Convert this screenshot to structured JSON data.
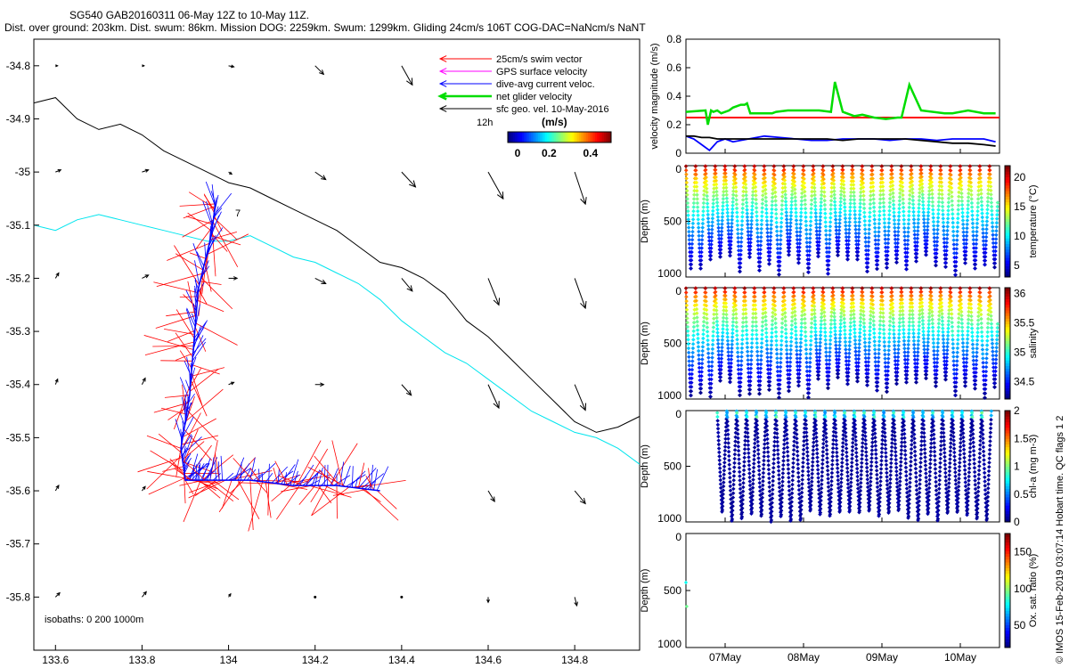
{
  "header": {
    "line1": "SG540 GAB20160311 06-May 12Z to 10-May 11Z.",
    "line2": "Dist. over ground: 203km. Dist. swum: 86km. Mission DOG: 2259km. Swum: 1299km. Gliding 24cm/s 106T COG-DAC=NaNcm/s NaNT"
  },
  "credit": "© IMOS 15-Feb-2019 03:07:14 Hobart time. QC flags 1  2",
  "colors": {
    "swim_vector": "#ff0000",
    "gps_velocity": "#ff00ff",
    "dive_avg_current": "#0000ff",
    "net_glider_velocity": "#00dd00",
    "sfc_geo_vel": "#000000",
    "isobath_200": "#00e5ee",
    "isobath_1000": "#000000",
    "threshold": "#ff0000"
  },
  "chart_data": [
    {
      "type": "map",
      "title": "",
      "xlim": [
        133.55,
        134.95
      ],
      "ylim": [
        -35.9,
        -34.75
      ],
      "x_ticks": [
        "133.6",
        "133.8",
        "134",
        "134.2",
        "134.4",
        "134.6",
        "134.8"
      ],
      "y_ticks": [
        "-34.8",
        "-34.9",
        "-35",
        "-35.1",
        "-35.2",
        "-35.3",
        "-35.4",
        "-35.5",
        "-35.6",
        "-35.7",
        "-35.8"
      ],
      "legend": [
        {
          "label": "25cm/s swim vector",
          "color": "#ff0000"
        },
        {
          "label": "GPS surface velocity",
          "color": "#ff00ff"
        },
        {
          "label": "dive-avg current veloc.",
          "color": "#0000ff"
        },
        {
          "label": "net glider velocity",
          "color": "#00dd00"
        },
        {
          "label": "sfc geo. vel. 10-May-2016",
          "color": "#000000"
        }
      ],
      "colorbar": {
        "label": "(m/s)",
        "ticks": [
          "0",
          "0.2",
          "0.4"
        ],
        "range": [
          0,
          0.5
        ]
      },
      "scale_label": "12h",
      "annotation": "7",
      "isobaths_label": "isobaths: 0   200  1000m",
      "isobath_1000m": {
        "lon": [
          133.55,
          133.6,
          133.65,
          133.7,
          133.75,
          133.8,
          133.85,
          133.9,
          133.95,
          134.0,
          134.05,
          134.1,
          134.15,
          134.2,
          134.25,
          134.3,
          134.35,
          134.4,
          134.45,
          134.5,
          134.55,
          134.6,
          134.65,
          134.7,
          134.75,
          134.8,
          134.85,
          134.9,
          134.95
        ],
        "lat": [
          -34.87,
          -34.86,
          -34.9,
          -34.92,
          -34.91,
          -34.93,
          -34.96,
          -34.98,
          -35.0,
          -35.02,
          -35.03,
          -35.05,
          -35.07,
          -35.09,
          -35.11,
          -35.14,
          -35.17,
          -35.18,
          -35.2,
          -35.23,
          -35.28,
          -35.31,
          -35.35,
          -35.39,
          -35.43,
          -35.47,
          -35.49,
          -35.48,
          -35.46
        ]
      },
      "isobath_200m": {
        "lon": [
          133.55,
          133.6,
          133.65,
          133.7,
          133.75,
          133.8,
          133.85,
          133.9,
          133.95,
          134.0,
          134.05,
          134.1,
          134.15,
          134.2,
          134.25,
          134.3,
          134.35,
          134.4,
          134.45,
          134.5,
          134.55,
          134.6,
          134.65,
          134.7,
          134.75,
          134.8,
          134.85,
          134.9,
          134.95
        ],
        "lat": [
          -35.1,
          -35.11,
          -35.09,
          -35.08,
          -35.09,
          -35.1,
          -35.11,
          -35.12,
          -35.13,
          -35.13,
          -35.12,
          -35.14,
          -35.16,
          -35.17,
          -35.19,
          -35.21,
          -35.24,
          -35.28,
          -35.31,
          -35.34,
          -35.36,
          -35.39,
          -35.42,
          -35.45,
          -35.47,
          -35.49,
          -35.5,
          -35.52,
          -35.55
        ]
      },
      "track_lon": [
        133.97,
        133.96,
        133.93,
        133.92,
        133.91,
        133.89,
        133.9,
        133.95,
        134.05,
        134.15,
        134.25,
        134.35
      ],
      "track_lat": [
        -35.06,
        -35.12,
        -35.22,
        -35.32,
        -35.42,
        -35.52,
        -35.58,
        -35.58,
        -35.58,
        -35.59,
        -35.59,
        -35.6
      ],
      "surface_vectors": [
        {
          "lon": 133.6,
          "lat": -34.8,
          "u": 0.02,
          "v": 0.0
        },
        {
          "lon": 133.8,
          "lat": -34.8,
          "u": 0.02,
          "v": 0.0
        },
        {
          "lon": 134.0,
          "lat": -34.8,
          "u": 0.05,
          "v": -0.01
        },
        {
          "lon": 134.2,
          "lat": -34.8,
          "u": 0.08,
          "v": -0.08
        },
        {
          "lon": 134.4,
          "lat": -34.8,
          "u": 0.1,
          "v": -0.18
        },
        {
          "lon": 134.6,
          "lat": -34.8,
          "u": 0.08,
          "v": -0.2
        },
        {
          "lon": 134.8,
          "lat": -34.8,
          "u": 0.08,
          "v": -0.22
        },
        {
          "lon": 133.6,
          "lat": -35.0,
          "u": 0.05,
          "v": 0.02
        },
        {
          "lon": 133.8,
          "lat": -35.0,
          "u": 0.06,
          "v": 0.02
        },
        {
          "lon": 134.0,
          "lat": -35.0,
          "u": 0.03,
          "v": -0.02
        },
        {
          "lon": 134.2,
          "lat": -35.0,
          "u": 0.1,
          "v": -0.07
        },
        {
          "lon": 134.4,
          "lat": -35.0,
          "u": 0.13,
          "v": -0.14
        },
        {
          "lon": 134.6,
          "lat": -35.0,
          "u": 0.14,
          "v": -0.25
        },
        {
          "lon": 134.8,
          "lat": -35.0,
          "u": 0.1,
          "v": -0.3
        },
        {
          "lon": 133.6,
          "lat": -35.2,
          "u": 0.03,
          "v": 0.05
        },
        {
          "lon": 133.8,
          "lat": -35.2,
          "u": 0.06,
          "v": 0.03
        },
        {
          "lon": 134.0,
          "lat": -35.2,
          "u": 0.08,
          "v": 0.0
        },
        {
          "lon": 134.2,
          "lat": -35.2,
          "u": 0.1,
          "v": -0.05
        },
        {
          "lon": 134.4,
          "lat": -35.2,
          "u": 0.1,
          "v": -0.12
        },
        {
          "lon": 134.6,
          "lat": -35.2,
          "u": 0.1,
          "v": -0.25
        },
        {
          "lon": 134.8,
          "lat": -35.2,
          "u": 0.1,
          "v": -0.28
        },
        {
          "lon": 133.6,
          "lat": -35.4,
          "u": 0.02,
          "v": 0.05
        },
        {
          "lon": 133.8,
          "lat": -35.4,
          "u": 0.03,
          "v": 0.06
        },
        {
          "lon": 134.0,
          "lat": -35.4,
          "u": 0.05,
          "v": 0.02
        },
        {
          "lon": 134.2,
          "lat": -35.4,
          "u": 0.08,
          "v": 0.0
        },
        {
          "lon": 134.4,
          "lat": -35.4,
          "u": 0.09,
          "v": -0.1
        },
        {
          "lon": 134.6,
          "lat": -35.4,
          "u": 0.1,
          "v": -0.22
        },
        {
          "lon": 134.8,
          "lat": -35.4,
          "u": 0.1,
          "v": -0.24
        },
        {
          "lon": 133.6,
          "lat": -35.6,
          "u": 0.03,
          "v": 0.05
        },
        {
          "lon": 133.8,
          "lat": -35.6,
          "u": 0.03,
          "v": 0.04
        },
        {
          "lon": 134.6,
          "lat": -35.6,
          "u": 0.06,
          "v": -0.1
        },
        {
          "lon": 134.8,
          "lat": -35.6,
          "u": 0.1,
          "v": -0.12
        },
        {
          "lon": 133.6,
          "lat": -35.8,
          "u": 0.04,
          "v": 0.04
        },
        {
          "lon": 133.8,
          "lat": -35.8,
          "u": 0.04,
          "v": 0.05
        },
        {
          "lon": 134.0,
          "lat": -35.8,
          "u": 0.02,
          "v": 0.03
        },
        {
          "lon": 134.2,
          "lat": -35.8,
          "u": 0.0,
          "v": 0.01
        },
        {
          "lon": 134.4,
          "lat": -35.8,
          "u": 0.0,
          "v": 0.005
        },
        {
          "lon": 134.6,
          "lat": -35.8,
          "u": 0.0,
          "v": -0.05
        },
        {
          "lon": 134.8,
          "lat": -35.8,
          "u": 0.02,
          "v": -0.08
        }
      ]
    },
    {
      "type": "line",
      "ylabel": "velocity magnitude (m/s)",
      "ylim": [
        0,
        0.8
      ],
      "y_ticks": [
        "0",
        "0.2",
        "0.4",
        "0.6",
        "0.8"
      ],
      "x_range_days": [
        6.5,
        10.5
      ],
      "threshold": 0.25,
      "series": [
        {
          "color": "#00dd00",
          "x": [
            6.5,
            6.75,
            6.78,
            6.82,
            6.85,
            6.9,
            6.95,
            7.05,
            7.1,
            7.15,
            7.2,
            7.25,
            7.28,
            7.32,
            7.6,
            7.65,
            7.8,
            7.95,
            8.1,
            8.2,
            8.35,
            8.4,
            8.5,
            8.6,
            8.65,
            8.75,
            8.9,
            9.05,
            9.2,
            9.25,
            9.35,
            9.5,
            9.8,
            9.9,
            10.1,
            10.3,
            10.45
          ],
          "y": [
            0.29,
            0.3,
            0.2,
            0.3,
            0.29,
            0.3,
            0.28,
            0.3,
            0.32,
            0.33,
            0.34,
            0.34,
            0.35,
            0.28,
            0.28,
            0.29,
            0.3,
            0.3,
            0.3,
            0.3,
            0.29,
            0.5,
            0.29,
            0.27,
            0.26,
            0.27,
            0.25,
            0.24,
            0.25,
            0.25,
            0.48,
            0.3,
            0.28,
            0.28,
            0.3,
            0.28,
            0.28
          ]
        },
        {
          "color": "#0000ff",
          "x": [
            6.5,
            6.6,
            6.7,
            6.8,
            6.9,
            7.0,
            7.1,
            7.3,
            7.5,
            7.7,
            7.9,
            8.1,
            8.3,
            8.5,
            8.7,
            8.9,
            9.1,
            9.3,
            9.5,
            9.7,
            9.9,
            10.1,
            10.3,
            10.45
          ],
          "y": [
            0.12,
            0.1,
            0.06,
            0.02,
            0.08,
            0.1,
            0.08,
            0.1,
            0.12,
            0.11,
            0.1,
            0.09,
            0.09,
            0.1,
            0.1,
            0.1,
            0.09,
            0.1,
            0.1,
            0.09,
            0.1,
            0.1,
            0.1,
            0.08
          ]
        },
        {
          "color": "#000000",
          "x": [
            6.5,
            6.6,
            6.7,
            6.8,
            6.9,
            7.0,
            7.1,
            7.3,
            7.5,
            7.7,
            7.9,
            8.1,
            8.3,
            8.5,
            8.7,
            8.9,
            9.1,
            9.3,
            9.5,
            9.7,
            9.9,
            10.1,
            10.3,
            10.45
          ],
          "y": [
            0.12,
            0.12,
            0.11,
            0.11,
            0.1,
            0.1,
            0.1,
            0.1,
            0.1,
            0.1,
            0.1,
            0.1,
            0.1,
            0.09,
            0.1,
            0.1,
            0.1,
            0.1,
            0.09,
            0.08,
            0.07,
            0.07,
            0.06,
            0.05
          ]
        }
      ]
    },
    {
      "type": "scatter",
      "ylabel": "Depth (m)",
      "colorbar_label": "temperature (°C)",
      "y_ticks": [
        "0",
        "500",
        "1000"
      ],
      "ylim": [
        0,
        1000
      ],
      "colorbar_ticks": [
        "5",
        "10",
        "15",
        "20"
      ],
      "colorbar_range": [
        3,
        22
      ],
      "profile_start_day": 6.5,
      "profile_spacing_days": 0.125,
      "profile_count": 32
    },
    {
      "type": "scatter",
      "ylabel": "Depth (m)",
      "colorbar_label": "salinity",
      "y_ticks": [
        "0",
        "500",
        "1000"
      ],
      "ylim": [
        0,
        1000
      ],
      "colorbar_ticks": [
        "34.5",
        "35",
        "35.5",
        "36"
      ],
      "colorbar_range": [
        34.2,
        36.1
      ],
      "profile_start_day": 6.5,
      "profile_spacing_days": 0.125,
      "profile_count": 32
    },
    {
      "type": "scatter",
      "ylabel": "Depth (m)",
      "colorbar_label": "chl-a (mg m-3)",
      "y_ticks": [
        "0",
        "500",
        "1000"
      ],
      "ylim": [
        0,
        1000
      ],
      "colorbar_ticks": [
        "0",
        "0.5",
        "1",
        "1.5",
        "2"
      ],
      "colorbar_range": [
        0,
        2
      ],
      "profile_start_day": 6.9,
      "profile_spacing_days": 0.125,
      "profile_count": 28
    },
    {
      "type": "scatter",
      "ylabel": "Depth (m)",
      "colorbar_label": "Ox. sat. ratio (%)",
      "y_ticks": [
        "0",
        "500",
        "1000"
      ],
      "ylim": [
        0,
        1000
      ],
      "colorbar_ticks": [
        "50",
        "100",
        "150"
      ],
      "colorbar_range": [
        20,
        175
      ],
      "x_ticks": [
        "07May",
        "08May",
        "09May",
        "10May"
      ],
      "points": [
        {
          "x": 6.5,
          "y": 430,
          "c": 80
        },
        {
          "x": 6.51,
          "y": 640,
          "c": 95
        }
      ]
    }
  ]
}
